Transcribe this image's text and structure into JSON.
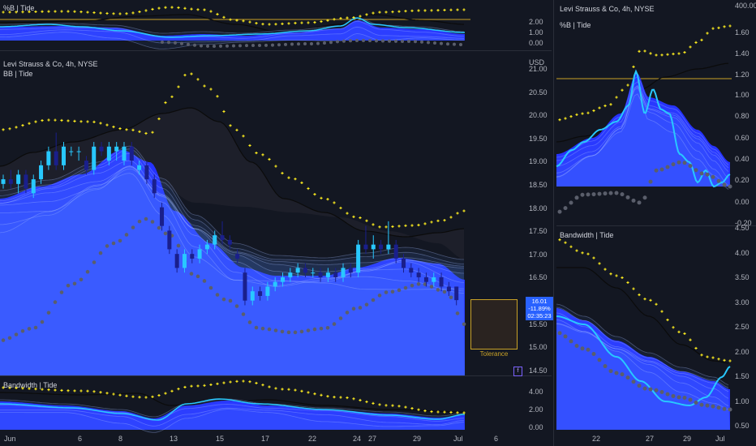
{
  "colors": {
    "background": "#131722",
    "tide_blue": "#2633ff",
    "tide_light": "#5b8cff",
    "cyan": "#28c8ff",
    "dots_yellow": "#ffee1f",
    "dots_gray": "#5a5e6b",
    "band_line": "#0a0a0a",
    "reference_line": "#c9a227",
    "price_tag": "#2962ff"
  },
  "main_chart": {
    "symbol_title": "Levi Strauss & Co, 4h, NYSE",
    "indicator_label": "BB | Tide",
    "currency": "USD",
    "price_ticks": [
      "21.00",
      "20.50",
      "20.00",
      "19.50",
      "19.00",
      "18.50",
      "18.00",
      "17.50",
      "17.00",
      "16.50",
      "16.00",
      "15.50",
      "15.00",
      "14.50"
    ],
    "last_price": {
      "value": "16.01",
      "change": "-11.89%",
      "countdown": "02:35:23"
    },
    "tolerance_label": "Tolerance",
    "indicator_icon": "f"
  },
  "top_pane": {
    "label": "%B | Tide",
    "ticks": [
      "2.00",
      "1.00",
      "0.00"
    ]
  },
  "bottom_pane": {
    "label": "Bandwidth | Tide",
    "ticks": [
      "4.00",
      "2.00",
      "0.00"
    ]
  },
  "x_axis": {
    "labels": [
      "Jun",
      "6",
      "8",
      "13",
      "15",
      "17",
      "22",
      "24",
      "27",
      "29",
      "Jul",
      "6"
    ]
  },
  "right_top": {
    "symbol_title": "Levi Strauss & Co, 4h, NYSE",
    "indicator_label": "%B | Tide",
    "ticks": [
      "400.00",
      "1.60",
      "1.40",
      "1.20",
      "1.00",
      "0.80",
      "0.60",
      "0.40",
      "0.20",
      "0.00",
      "-0.20"
    ]
  },
  "right_bottom": {
    "indicator_label": "Bandwidth | Tide",
    "ticks": [
      "4.50",
      "4.00",
      "3.50",
      "3.00",
      "2.50",
      "2.00",
      "1.50",
      "1.00",
      "0.50"
    ]
  },
  "right_x_axis": {
    "labels": [
      "22",
      "27",
      "29",
      "Jul"
    ]
  },
  "chart_data": {
    "type": "candlestick",
    "title": "Levi Strauss & Co, 4h, NYSE",
    "ylabel": "USD",
    "ylim": [
      14.5,
      21.0
    ],
    "candles": [
      {
        "o": 18.5,
        "c": 18.6,
        "h": 18.7,
        "l": 18.4
      },
      {
        "o": 18.6,
        "c": 18.5,
        "h": 18.8,
        "l": 18.4
      },
      {
        "o": 18.5,
        "c": 18.7,
        "h": 18.8,
        "l": 18.3
      },
      {
        "o": 18.7,
        "c": 18.4,
        "h": 18.8,
        "l": 18.3
      },
      {
        "o": 18.3,
        "c": 18.6,
        "h": 18.7,
        "l": 18.2
      },
      {
        "o": 18.6,
        "c": 18.9,
        "h": 19.0,
        "l": 18.5
      },
      {
        "o": 18.9,
        "c": 19.2,
        "h": 19.3,
        "l": 18.8
      },
      {
        "o": 19.2,
        "c": 18.9,
        "h": 19.6,
        "l": 18.8
      },
      {
        "o": 18.9,
        "c": 19.3,
        "h": 19.4,
        "l": 18.8
      },
      {
        "o": 19.2,
        "c": 19.2,
        "h": 19.3,
        "l": 19.1
      },
      {
        "o": 19.2,
        "c": 19.2,
        "h": 19.3,
        "l": 19.0
      },
      {
        "o": 19.0,
        "c": 18.8,
        "h": 19.1,
        "l": 18.7
      },
      {
        "o": 18.8,
        "c": 19.3,
        "h": 19.4,
        "l": 18.7
      },
      {
        "o": 19.3,
        "c": 19.2,
        "h": 19.4,
        "l": 19.1
      },
      {
        "o": 19.0,
        "c": 19.3,
        "h": 19.4,
        "l": 18.9
      },
      {
        "o": 19.2,
        "c": 19.3,
        "h": 19.4,
        "l": 19.0
      },
      {
        "o": 19.0,
        "c": 19.3,
        "h": 19.4,
        "l": 18.9
      },
      {
        "o": 19.3,
        "c": 19.0,
        "h": 19.4,
        "l": 18.9
      },
      {
        "o": 18.8,
        "c": 18.9,
        "h": 19.0,
        "l": 18.7
      },
      {
        "o": 18.9,
        "c": 18.6,
        "h": 19.0,
        "l": 18.5
      },
      {
        "o": 18.6,
        "c": 18.3,
        "h": 18.7,
        "l": 18.2
      },
      {
        "o": 18.0,
        "c": 17.6,
        "h": 18.1,
        "l": 17.5
      },
      {
        "o": 17.5,
        "c": 17.1,
        "h": 17.6,
        "l": 17.0
      },
      {
        "o": 17.0,
        "c": 16.7,
        "h": 17.1,
        "l": 16.6
      },
      {
        "o": 16.7,
        "c": 17.0,
        "h": 17.1,
        "l": 16.6
      },
      {
        "o": 17.0,
        "c": 16.9,
        "h": 17.1,
        "l": 16.8
      },
      {
        "o": 16.9,
        "c": 17.1,
        "h": 17.2,
        "l": 16.8
      },
      {
        "o": 17.1,
        "c": 17.2,
        "h": 17.3,
        "l": 17.0
      },
      {
        "o": 17.2,
        "c": 17.4,
        "h": 17.5,
        "l": 17.1
      },
      {
        "o": 17.4,
        "c": 17.3,
        "h": 17.7,
        "l": 17.2
      },
      {
        "o": 17.3,
        "c": 17.2,
        "h": 17.4,
        "l": 17.1
      },
      {
        "o": 17.0,
        "c": 16.9,
        "h": 17.1,
        "l": 16.8
      },
      {
        "o": 16.6,
        "c": 16.0,
        "h": 16.7,
        "l": 15.9
      },
      {
        "o": 16.0,
        "c": 16.2,
        "h": 16.3,
        "l": 15.9
      },
      {
        "o": 16.2,
        "c": 16.1,
        "h": 16.3,
        "l": 16.0
      },
      {
        "o": 16.1,
        "c": 16.3,
        "h": 16.4,
        "l": 16.0
      },
      {
        "o": 16.3,
        "c": 16.4,
        "h": 16.5,
        "l": 16.2
      },
      {
        "o": 16.4,
        "c": 16.5,
        "h": 16.6,
        "l": 16.3
      },
      {
        "o": 16.5,
        "c": 16.6,
        "h": 16.7,
        "l": 16.4
      },
      {
        "o": 16.6,
        "c": 16.7,
        "h": 16.8,
        "l": 16.5
      },
      {
        "o": 16.7,
        "c": 16.6,
        "h": 16.8,
        "l": 16.5
      },
      {
        "o": 16.6,
        "c": 16.6,
        "h": 16.7,
        "l": 16.5
      },
      {
        "o": 16.6,
        "c": 16.5,
        "h": 16.7,
        "l": 16.4
      },
      {
        "o": 16.5,
        "c": 16.6,
        "h": 16.7,
        "l": 16.4
      },
      {
        "o": 16.6,
        "c": 16.5,
        "h": 16.7,
        "l": 16.4
      },
      {
        "o": 16.5,
        "c": 16.7,
        "h": 16.8,
        "l": 16.4
      },
      {
        "o": 16.7,
        "c": 16.6,
        "h": 16.8,
        "l": 16.5
      },
      {
        "o": 16.6,
        "c": 17.2,
        "h": 17.3,
        "l": 16.5
      },
      {
        "o": 17.2,
        "c": 17.1,
        "h": 17.6,
        "l": 17.0
      },
      {
        "o": 17.1,
        "c": 17.2,
        "h": 17.4,
        "l": 16.9
      },
      {
        "o": 17.2,
        "c": 17.1,
        "h": 17.3,
        "l": 17.0
      },
      {
        "o": 17.1,
        "c": 17.2,
        "h": 17.7,
        "l": 17.0
      },
      {
        "o": 17.2,
        "c": 16.9,
        "h": 17.3,
        "l": 16.8
      },
      {
        "o": 16.9,
        "c": 16.7,
        "h": 17.0,
        "l": 16.6
      },
      {
        "o": 16.7,
        "c": 16.6,
        "h": 16.8,
        "l": 16.5
      },
      {
        "o": 16.6,
        "c": 16.5,
        "h": 16.7,
        "l": 16.4
      },
      {
        "o": 16.5,
        "c": 16.4,
        "h": 16.6,
        "l": 16.3
      },
      {
        "o": 16.4,
        "c": 16.5,
        "h": 16.6,
        "l": 16.3
      },
      {
        "o": 16.5,
        "c": 16.3,
        "h": 16.6,
        "l": 16.2
      },
      {
        "o": 16.3,
        "c": 16.2,
        "h": 16.4,
        "l": 16.1
      },
      {
        "o": 16.3,
        "c": 16.01,
        "h": 16.3,
        "l": 15.9
      }
    ]
  }
}
